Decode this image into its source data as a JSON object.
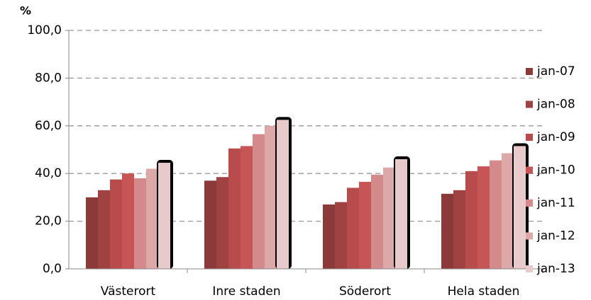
{
  "chart_data": {
    "type": "bar",
    "y_label": "%",
    "categories": [
      "Västerort",
      "Inre staden",
      "Söderort",
      "Hela staden"
    ],
    "series": [
      {
        "name": "jan-07",
        "color": "#8b3a3a",
        "values": [
          30,
          37,
          27,
          31.5
        ]
      },
      {
        "name": "jan-08",
        "color": "#a04242",
        "values": [
          33,
          38.5,
          28,
          33
        ]
      },
      {
        "name": "jan-09",
        "color": "#b84c4c",
        "values": [
          37.5,
          50.5,
          34,
          41
        ]
      },
      {
        "name": "jan-10",
        "color": "#c75555",
        "values": [
          40,
          51.5,
          36.5,
          43
        ]
      },
      {
        "name": "jan-11",
        "color": "#d48a8a",
        "values": [
          38,
          56.5,
          39.5,
          45.5
        ]
      },
      {
        "name": "jan-12",
        "color": "#dca8a8",
        "values": [
          42,
          60,
          42.5,
          48.5
        ]
      },
      {
        "name": "jan-13",
        "color": "#e9caca",
        "values": [
          44.5,
          62.5,
          46,
          51.5
        ]
      }
    ],
    "ylim": [
      0,
      100
    ],
    "yticks": [
      {
        "value": 0,
        "label": "0,0"
      },
      {
        "value": 20,
        "label": "20,0"
      },
      {
        "value": 40,
        "label": "40,0"
      },
      {
        "value": 60,
        "label": "60,0"
      },
      {
        "value": 80,
        "label": "80,0"
      },
      {
        "value": 100,
        "label": "100,0"
      }
    ],
    "grid": true,
    "legend": "right"
  }
}
